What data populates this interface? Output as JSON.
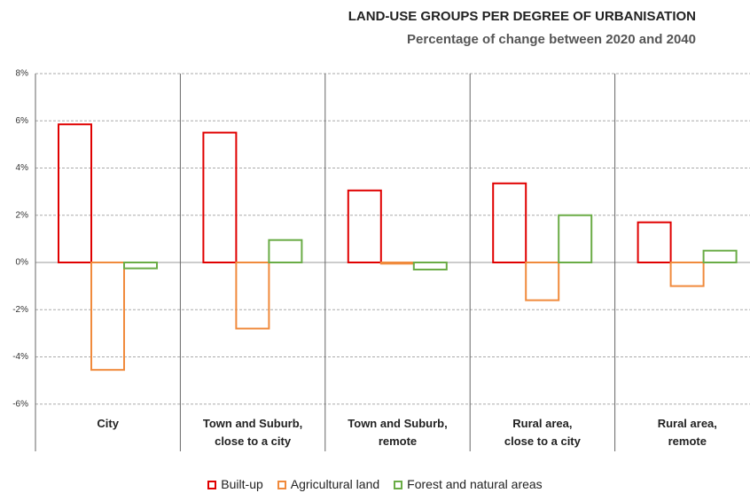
{
  "chart_data": {
    "type": "bar",
    "title": "LAND-USE GROUPS PER DEGREE OF URBANISATION",
    "subtitle": "Percentage of change between 2020 and 2040",
    "categories": [
      "City",
      "Town and Suburb,\nclose to a city",
      "Town and Suburb,\nremote",
      "Rural area,\nclose to a city",
      "Rural area,\nremote"
    ],
    "series": [
      {
        "name": "Built-up",
        "color": "#e00000",
        "values": [
          5.85,
          5.5,
          3.05,
          3.35,
          1.7
        ]
      },
      {
        "name": "Agricultural land",
        "color": "#f08a3c",
        "values": [
          -4.55,
          -2.8,
          -0.05,
          -1.6,
          -1.0
        ]
      },
      {
        "name": "Forest and natural areas",
        "color": "#6aac46",
        "values": [
          -0.25,
          0.95,
          -0.3,
          2.0,
          0.5
        ]
      }
    ],
    "ylim": [
      -8,
      8
    ],
    "yticks": [
      {
        "value": -6,
        "label": "-6%"
      },
      {
        "value": -4,
        "label": "-4%"
      },
      {
        "value": -2,
        "label": "-2%"
      },
      {
        "value": 0,
        "label": "0%"
      },
      {
        "value": 2,
        "label": "2%"
      },
      {
        "value": 4,
        "label": "4%"
      },
      {
        "value": 6,
        "label": "6%"
      },
      {
        "value": 8,
        "label": "8%"
      }
    ],
    "grid": true,
    "legend": "bottom"
  }
}
